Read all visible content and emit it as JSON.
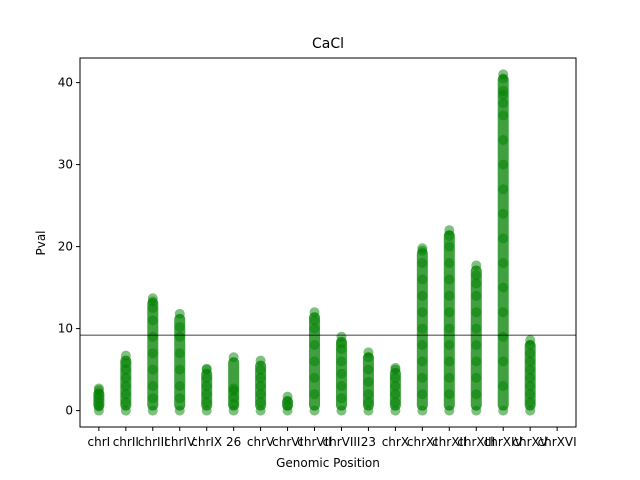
{
  "chart_data": {
    "type": "scatter",
    "title": "CaCl",
    "xlabel": "Genomic Position",
    "ylabel": "Pval",
    "ylim": [
      -2,
      43
    ],
    "yticks": [
      0,
      10,
      20,
      30,
      40
    ],
    "threshold": 9.2,
    "marker_color": "#008000",
    "threshold_color": "#000000",
    "categories": [
      "chrI",
      "chrII",
      "chrIII",
      "chrIV",
      "chrIX",
      "26",
      "chrV",
      "chrVI",
      "chrVII",
      "chrVIII",
      "23",
      "chrX",
      "chrXI",
      "chrXII",
      "chrXIII",
      "chrXIV",
      "chrXV",
      "chrXVI"
    ],
    "series": [
      {
        "points": [
          [
            0,
            0
          ],
          [
            0,
            0.5
          ],
          [
            0,
            1
          ],
          [
            0,
            1.5
          ],
          [
            0,
            2
          ],
          [
            0,
            2.5
          ],
          [
            0,
            2.7
          ]
        ]
      },
      {
        "points": [
          [
            1,
            0
          ],
          [
            1,
            1
          ],
          [
            1,
            2
          ],
          [
            1,
            3
          ],
          [
            1,
            4
          ],
          [
            1,
            5
          ],
          [
            1,
            5.8
          ],
          [
            1,
            6.7
          ]
        ]
      },
      {
        "points": [
          [
            2,
            0
          ],
          [
            2,
            1.5
          ],
          [
            2,
            3
          ],
          [
            2,
            5
          ],
          [
            2,
            7
          ],
          [
            2,
            9
          ],
          [
            2,
            11
          ],
          [
            2,
            12.5
          ],
          [
            2,
            13.3
          ],
          [
            2,
            13.7
          ]
        ]
      },
      {
        "points": [
          [
            3,
            0
          ],
          [
            3,
            1.5
          ],
          [
            3,
            3
          ],
          [
            3,
            5
          ],
          [
            3,
            7
          ],
          [
            3,
            9
          ],
          [
            3,
            10.2
          ],
          [
            3,
            11.8
          ]
        ]
      },
      {
        "points": [
          [
            4,
            0
          ],
          [
            4,
            1
          ],
          [
            4,
            2
          ],
          [
            4,
            3
          ],
          [
            4,
            4
          ],
          [
            4,
            5
          ],
          [
            4,
            5.1
          ]
        ]
      },
      {
        "points": [
          [
            5,
            0
          ],
          [
            5,
            0.8
          ],
          [
            5,
            1.6
          ],
          [
            5,
            2.4
          ],
          [
            5,
            2.7
          ],
          [
            5,
            6.5
          ]
        ]
      },
      {
        "points": [
          [
            6,
            0
          ],
          [
            6,
            1
          ],
          [
            6,
            2
          ],
          [
            6,
            3
          ],
          [
            6,
            4
          ],
          [
            6,
            5
          ],
          [
            6,
            6.1
          ]
        ]
      },
      {
        "points": [
          [
            7,
            0
          ],
          [
            7,
            0.6
          ],
          [
            7,
            1.2
          ],
          [
            7,
            1.7
          ]
        ]
      },
      {
        "points": [
          [
            8,
            0
          ],
          [
            8,
            2
          ],
          [
            8,
            4
          ],
          [
            8,
            6
          ],
          [
            8,
            8
          ],
          [
            8,
            10
          ],
          [
            8,
            11
          ],
          [
            8,
            12
          ]
        ]
      },
      {
        "points": [
          [
            9,
            0
          ],
          [
            9,
            1.5
          ],
          [
            9,
            3
          ],
          [
            9,
            4.5
          ],
          [
            9,
            6
          ],
          [
            9,
            7.5
          ],
          [
            9,
            8.2
          ],
          [
            9,
            9
          ]
        ]
      },
      {
        "points": [
          [
            10,
            0
          ],
          [
            10,
            1
          ],
          [
            10,
            2
          ],
          [
            10,
            3.5
          ],
          [
            10,
            5
          ],
          [
            10,
            6.5
          ],
          [
            10,
            7.1
          ]
        ]
      },
      {
        "points": [
          [
            11,
            0
          ],
          [
            11,
            1
          ],
          [
            11,
            2
          ],
          [
            11,
            3
          ],
          [
            11,
            4
          ],
          [
            11,
            5
          ],
          [
            11,
            5.2
          ]
        ]
      },
      {
        "points": [
          [
            12,
            0
          ],
          [
            12,
            2
          ],
          [
            12,
            4
          ],
          [
            12,
            6
          ],
          [
            12,
            8
          ],
          [
            12,
            10
          ],
          [
            12,
            12
          ],
          [
            12,
            14
          ],
          [
            12,
            16
          ],
          [
            12,
            18
          ],
          [
            12,
            19.5
          ],
          [
            12,
            19.8
          ]
        ]
      },
      {
        "points": [
          [
            13,
            0
          ],
          [
            13,
            2
          ],
          [
            13,
            4
          ],
          [
            13,
            6
          ],
          [
            13,
            8
          ],
          [
            13,
            10
          ],
          [
            13,
            12
          ],
          [
            13,
            14
          ],
          [
            13,
            16
          ],
          [
            13,
            18
          ],
          [
            13,
            20
          ],
          [
            13,
            21.3
          ],
          [
            13,
            22
          ]
        ]
      },
      {
        "points": [
          [
            14,
            0
          ],
          [
            14,
            2
          ],
          [
            14,
            4
          ],
          [
            14,
            6
          ],
          [
            14,
            8
          ],
          [
            14,
            10
          ],
          [
            14,
            12
          ],
          [
            14,
            14
          ],
          [
            14,
            15.5
          ],
          [
            14,
            16.5
          ],
          [
            14,
            17.7
          ]
        ]
      },
      {
        "points": [
          [
            15,
            0
          ],
          [
            15,
            3
          ],
          [
            15,
            6
          ],
          [
            15,
            9
          ],
          [
            15,
            12
          ],
          [
            15,
            15
          ],
          [
            15,
            18
          ],
          [
            15,
            21
          ],
          [
            15,
            24
          ],
          [
            15,
            27
          ],
          [
            15,
            30
          ],
          [
            15,
            33
          ],
          [
            15,
            36
          ],
          [
            15,
            37.5
          ],
          [
            15,
            38.5
          ],
          [
            15,
            39
          ],
          [
            15,
            40.5
          ],
          [
            15,
            41
          ]
        ]
      },
      {
        "points": [
          [
            16,
            0
          ],
          [
            16,
            1
          ],
          [
            16,
            2
          ],
          [
            16,
            3
          ],
          [
            16,
            4
          ],
          [
            16,
            5
          ],
          [
            16,
            6
          ],
          [
            16,
            7
          ],
          [
            16,
            8
          ],
          [
            16,
            8.6
          ]
        ]
      }
    ]
  }
}
